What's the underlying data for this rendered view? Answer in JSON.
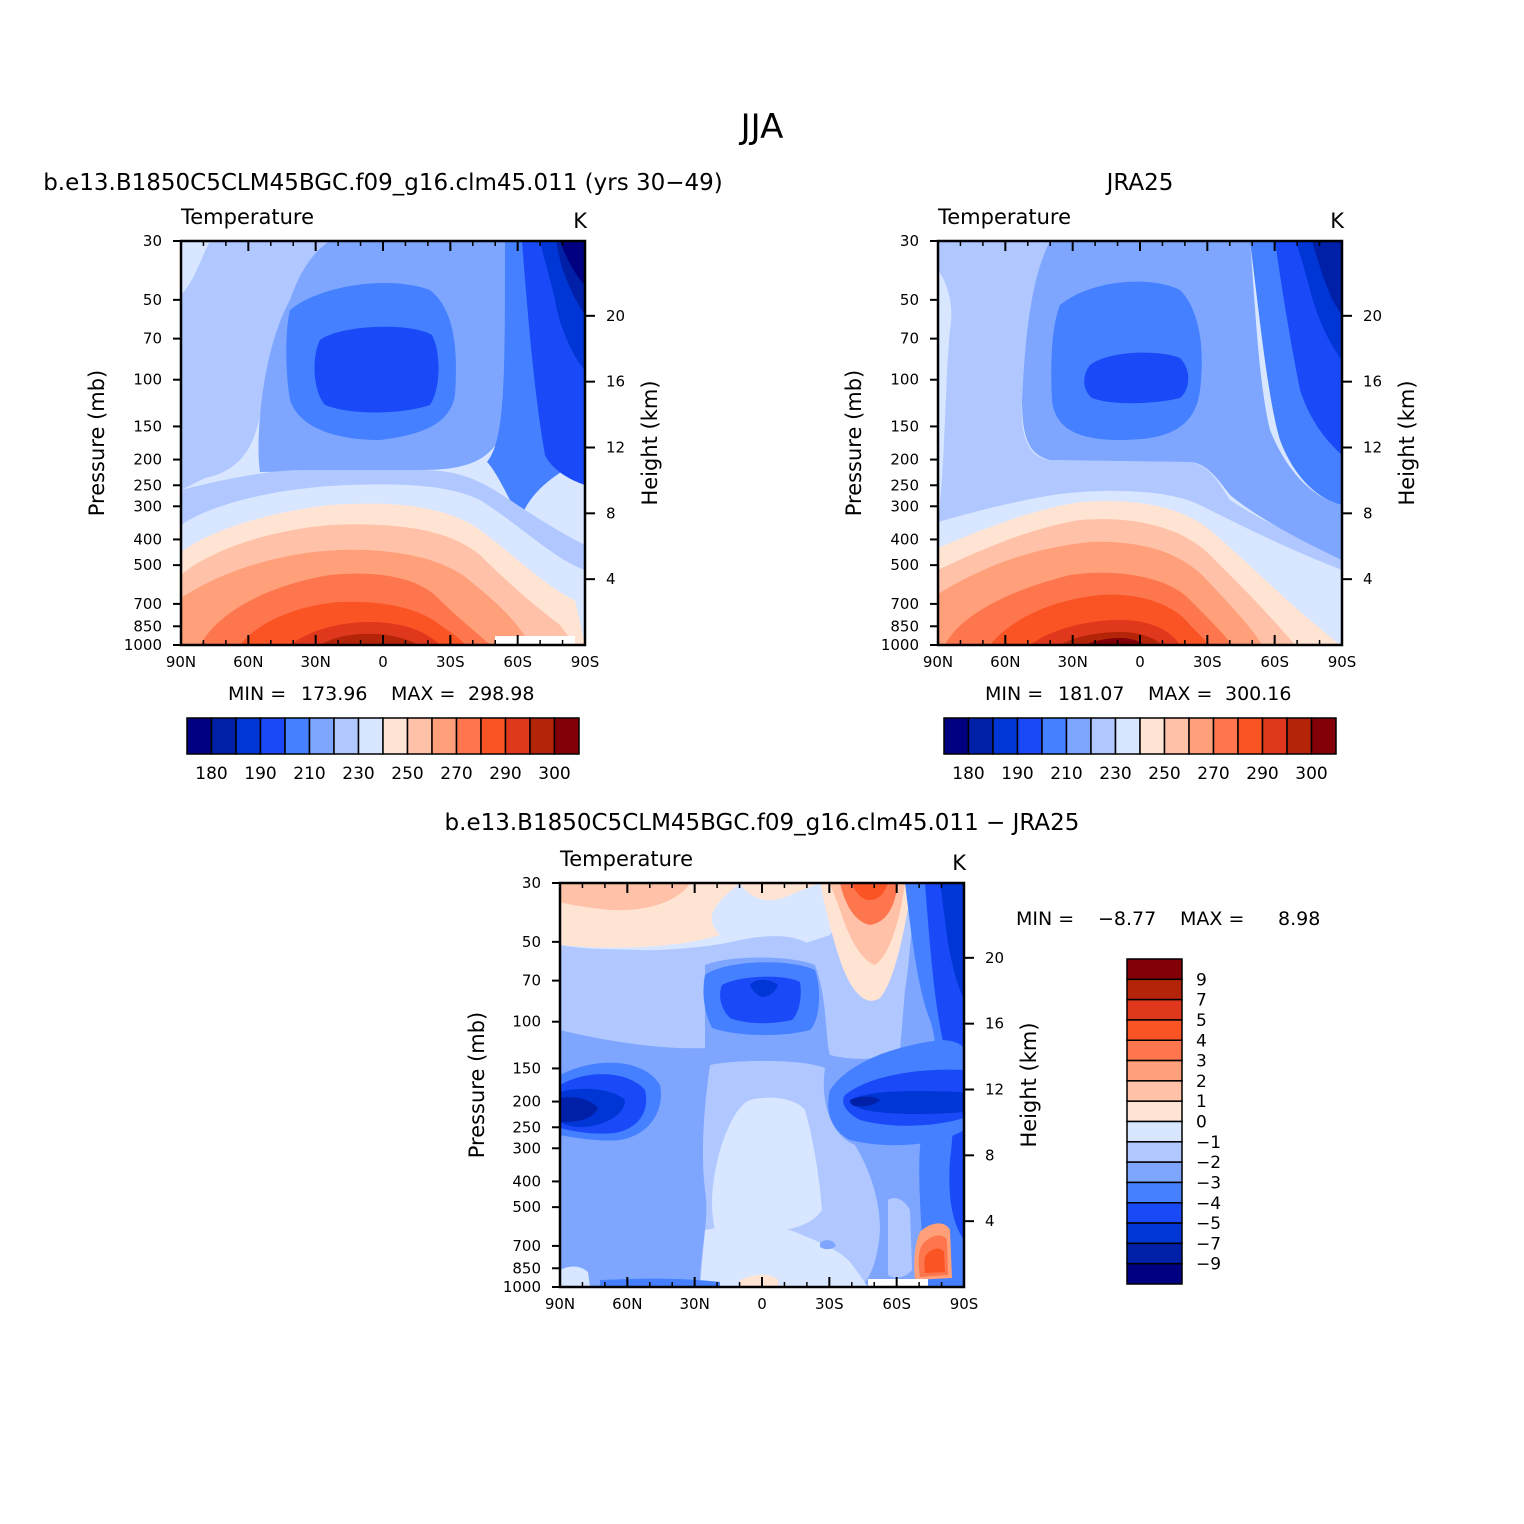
{
  "figure": {
    "title": "JJA"
  },
  "chart_data": [
    {
      "type": "contour",
      "subtitle": "b.e13.B1850C5CLM45BGC.f09_g16.clm45.011 (yrs 30−49)",
      "variable": "Temperature",
      "units": "K",
      "x_ticks": [
        "90N",
        "60N",
        "30N",
        "0",
        "30S",
        "60S",
        "90S"
      ],
      "xlim": [
        90,
        -90
      ],
      "y_ticks": [
        30,
        50,
        70,
        100,
        150,
        200,
        250,
        300,
        400,
        500,
        700,
        850,
        1000
      ],
      "ylim": [
        1000,
        30
      ],
      "y_scale": "log",
      "ylabel": "Pressure (mb)",
      "y2_ticks": [
        20,
        16,
        12,
        8,
        4
      ],
      "y2label": "Height (km)",
      "min_label": "MIN =",
      "min_value": "173.96",
      "max_label": "MAX =",
      "max_value": "298.98",
      "colorbar": {
        "orientation": "horizontal",
        "labels": [
          "180",
          "190",
          "210",
          "230",
          "250",
          "270",
          "290",
          "300"
        ],
        "colors": [
          "#000080",
          "#0020a8",
          "#0036d6",
          "#1a4af8",
          "#4480ff",
          "#7ea6ff",
          "#b0c8ff",
          "#d8e6ff",
          "#ffe4d4",
          "#ffc2a8",
          "#ffa07a",
          "#fd764e",
          "#fb5424",
          "#e0381c",
          "#b42408",
          "#830008"
        ]
      }
    },
    {
      "type": "contour",
      "subtitle": "JRA25",
      "variable": "Temperature",
      "units": "K",
      "x_ticks": [
        "90N",
        "60N",
        "30N",
        "0",
        "30S",
        "60S",
        "90S"
      ],
      "xlim": [
        90,
        -90
      ],
      "y_ticks": [
        30,
        50,
        70,
        100,
        150,
        200,
        250,
        300,
        400,
        500,
        700,
        850,
        1000
      ],
      "ylim": [
        1000,
        30
      ],
      "y_scale": "log",
      "ylabel": "Pressure (mb)",
      "y2_ticks": [
        20,
        16,
        12,
        8,
        4
      ],
      "y2label": "Height (km)",
      "min_label": "MIN =",
      "min_value": "181.07",
      "max_label": "MAX =",
      "max_value": "300.16",
      "colorbar": {
        "orientation": "horizontal",
        "labels": [
          "180",
          "190",
          "210",
          "230",
          "250",
          "270",
          "290",
          "300"
        ],
        "colors": [
          "#000080",
          "#0020a8",
          "#0036d6",
          "#1a4af8",
          "#4480ff",
          "#7ea6ff",
          "#b0c8ff",
          "#d8e6ff",
          "#ffe4d4",
          "#ffc2a8",
          "#ffa07a",
          "#fd764e",
          "#fb5424",
          "#e0381c",
          "#b42408",
          "#830008"
        ]
      }
    },
    {
      "type": "contour",
      "subtitle": "b.e13.B1850C5CLM45BGC.f09_g16.clm45.011 − JRA25",
      "variable": "Temperature",
      "units": "K",
      "x_ticks": [
        "90N",
        "60N",
        "30N",
        "0",
        "30S",
        "60S",
        "90S"
      ],
      "xlim": [
        90,
        -90
      ],
      "y_ticks": [
        30,
        50,
        70,
        100,
        150,
        200,
        250,
        300,
        400,
        500,
        700,
        850,
        1000
      ],
      "ylim": [
        1000,
        30
      ],
      "y_scale": "log",
      "ylabel": "Pressure (mb)",
      "y2_ticks": [
        20,
        16,
        12,
        8,
        4
      ],
      "y2label": "Height (km)",
      "min_label": "MIN =",
      "min_value": "−8.77",
      "max_label": "MAX =",
      "max_value": "8.98",
      "colorbar": {
        "orientation": "vertical",
        "labels": [
          "9",
          "7",
          "5",
          "4",
          "3",
          "2",
          "1",
          "0",
          "−1",
          "−2",
          "−3",
          "−4",
          "−5",
          "−7",
          "−9"
        ],
        "colors": [
          "#830008",
          "#b42408",
          "#e0381c",
          "#fb5424",
          "#fd764e",
          "#ffa07a",
          "#ffc2a8",
          "#ffe4d4",
          "#d8e6ff",
          "#b0c8ff",
          "#7ea6ff",
          "#4480ff",
          "#1a4af8",
          "#0036d6",
          "#0020a8",
          "#000080"
        ]
      }
    }
  ]
}
